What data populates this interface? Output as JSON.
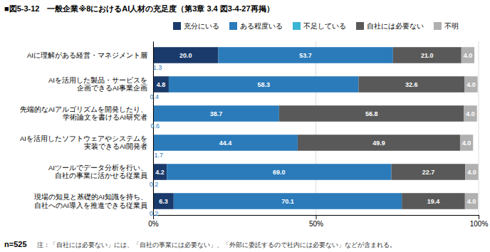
{
  "chart_data": {
    "type": "bar",
    "orientation": "horizontal",
    "stacked": true,
    "data_labels": true,
    "grid": true,
    "title": "■図5-3-12　一般企業※8におけるAI人材の充足度（第3章 3.4 図3-4-27再掲）",
    "categories": [
      "AIに理解がある経営・マネジメント層",
      "AIを活用した製品・サービスを\n企画できるAI事業企画",
      "先端的なAIアルゴリズムを開発したり、\n学術論文を書けるAI研究者",
      "AIを活用したソフトウェアやシステムを\n実装できるAI開発者",
      "AIツールでデータ分析を行い、\n自社の事業に活かせる従業員",
      "現場の知見と基礎的AI知識を持ち、\n自社へのAI導入を推進できる従業員"
    ],
    "series": [
      {
        "name": "充分にいる",
        "color": "#1a3a6b",
        "values": [
          20.0,
          4.8,
          0.0,
          0.0,
          4.2,
          6.3
        ],
        "value_labels": [
          "20.0",
          "4.8",
          null,
          null,
          "4.2",
          "6.3"
        ]
      },
      {
        "name": "ある程度いる",
        "color": "#2b7bba",
        "values": [
          53.7,
          58.3,
          38.7,
          44.4,
          69.0,
          70.1
        ],
        "value_labels": [
          "53.7",
          "58.3",
          "38.7",
          "44.4",
          "69.0",
          "70.1"
        ]
      },
      {
        "name": "不足している",
        "color": "#3ab5d4",
        "values": [
          0,
          0,
          0,
          0,
          0,
          0
        ]
      },
      {
        "name": "自社には必要ない",
        "color": "#595959",
        "values": [
          21.0,
          32.6,
          56.8,
          49.9,
          22.7,
          19.4
        ],
        "value_labels": [
          "21.0",
          "32.6",
          "56.8",
          "49.9",
          "22.7",
          "19.4"
        ]
      },
      {
        "name": "不明",
        "color": "#b0b0b0",
        "values": [
          4.0,
          4.0,
          4.0,
          4.0,
          4.0,
          4.0
        ],
        "value_labels": [
          "4.0",
          "4.0",
          "4.0",
          "4.0",
          "4.0",
          "4.0"
        ]
      }
    ],
    "xlim": [
      0,
      100
    ],
    "xticks": [
      {
        "value": 0,
        "label": "0%"
      },
      {
        "value": 50,
        "label": "50%"
      },
      {
        "value": 100,
        "label": "100%"
      }
    ],
    "annotations": [
      {
        "category": "AIに理解がある経営・マネジメント層",
        "x": 1.3,
        "text": "1.3"
      },
      {
        "category": "AIを活用した製品・サービスを\n企画できるAI事業企画",
        "x": 0.4,
        "text": "0.4"
      },
      {
        "category": "先端的なAIアルゴリズムを開発したり、\n学術論文を書けるAI研究者",
        "x": 0.6,
        "text": "0.6"
      },
      {
        "category": "AIを活用したソフトウェアやシステムを\n実装できるAI開発者",
        "x": 1.7,
        "text": "1.7"
      },
      {
        "category": "AIツールでデータ分析を行い、\n自社の事業に活かせる従業員",
        "x": 0.2,
        "text": "0.2"
      },
      {
        "category": "現場の知見と基礎的AI知識を持ち、\n自社へのAI導入を推進できる従業員",
        "x": 0.2,
        "text": "0.2"
      },
      {
        "text": "n=525"
      },
      {
        "text": "注：「自社には必要ない」には、「自社の事業には必要ない」、「外部に委託するので社内には必要ない」などが含まれる。"
      }
    ]
  }
}
